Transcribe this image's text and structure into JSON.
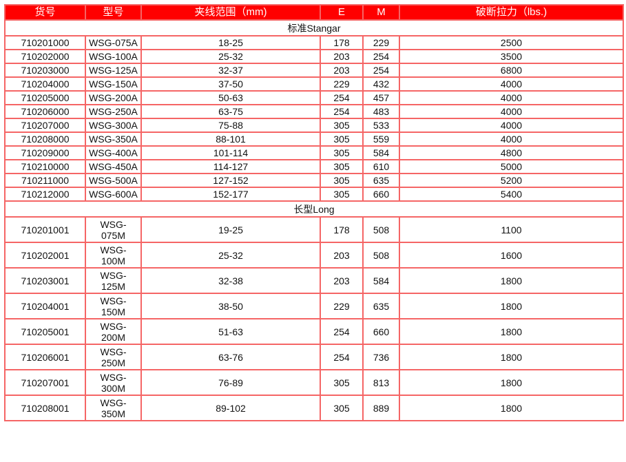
{
  "header": [
    "货号",
    "型号",
    "夹线范围（mm)",
    "E",
    "M",
    "破断拉力（lbs.)"
  ],
  "sections": [
    {
      "title": "标准Stangar",
      "rows": [
        [
          "710201000",
          "WSG-075A",
          "18-25",
          "178",
          "229",
          "2500"
        ],
        [
          "710202000",
          "WSG-100A",
          "25-32",
          "203",
          "254",
          "3500"
        ],
        [
          "710203000",
          "WSG-125A",
          "32-37",
          "203",
          "254",
          "6800"
        ],
        [
          "710204000",
          "WSG-150A",
          "37-50",
          "229",
          "432",
          "4000"
        ],
        [
          "710205000",
          "WSG-200A",
          "50-63",
          "254",
          "457",
          "4000"
        ],
        [
          "710206000",
          "WSG-250A",
          "63-75",
          "254",
          "483",
          "4000"
        ],
        [
          "710207000",
          "WSG-300A",
          "75-88",
          "305",
          "533",
          "4000"
        ],
        [
          "710208000",
          "WSG-350A",
          "88-101",
          "305",
          "559",
          "4000"
        ],
        [
          "710209000",
          "WSG-400A",
          "101-114",
          "305",
          "584",
          "4800"
        ],
        [
          "710210000",
          "WSG-450A",
          "114-127",
          "305",
          "610",
          "5000"
        ],
        [
          "710211000",
          "WSG-500A",
          "127-152",
          "305",
          "635",
          "5200"
        ],
        [
          "710212000",
          "WSG-600A",
          "152-177",
          "305",
          "660",
          "5400"
        ]
      ]
    },
    {
      "title": "长型Long",
      "rows": [
        [
          "710201001",
          "WSG-075M",
          "19-25",
          "178",
          "508",
          "1100"
        ],
        [
          "710202001",
          "WSG-100M",
          "25-32",
          "203",
          "508",
          "1600"
        ],
        [
          "710203001",
          "WSG-125M",
          "32-38",
          "203",
          "584",
          "1800"
        ],
        [
          "710204001",
          "WSG-150M",
          "38-50",
          "229",
          "635",
          "1800"
        ],
        [
          "710205001",
          "WSG-200M",
          "51-63",
          "254",
          "660",
          "1800"
        ],
        [
          "710206001",
          "WSG-250M",
          "63-76",
          "254",
          "736",
          "1800"
        ],
        [
          "710207001",
          "WSG-300M",
          "76-89",
          "305",
          "813",
          "1800"
        ],
        [
          "710208001",
          "WSG-350M",
          "89-102",
          "305",
          "889",
          "1800"
        ]
      ]
    }
  ]
}
